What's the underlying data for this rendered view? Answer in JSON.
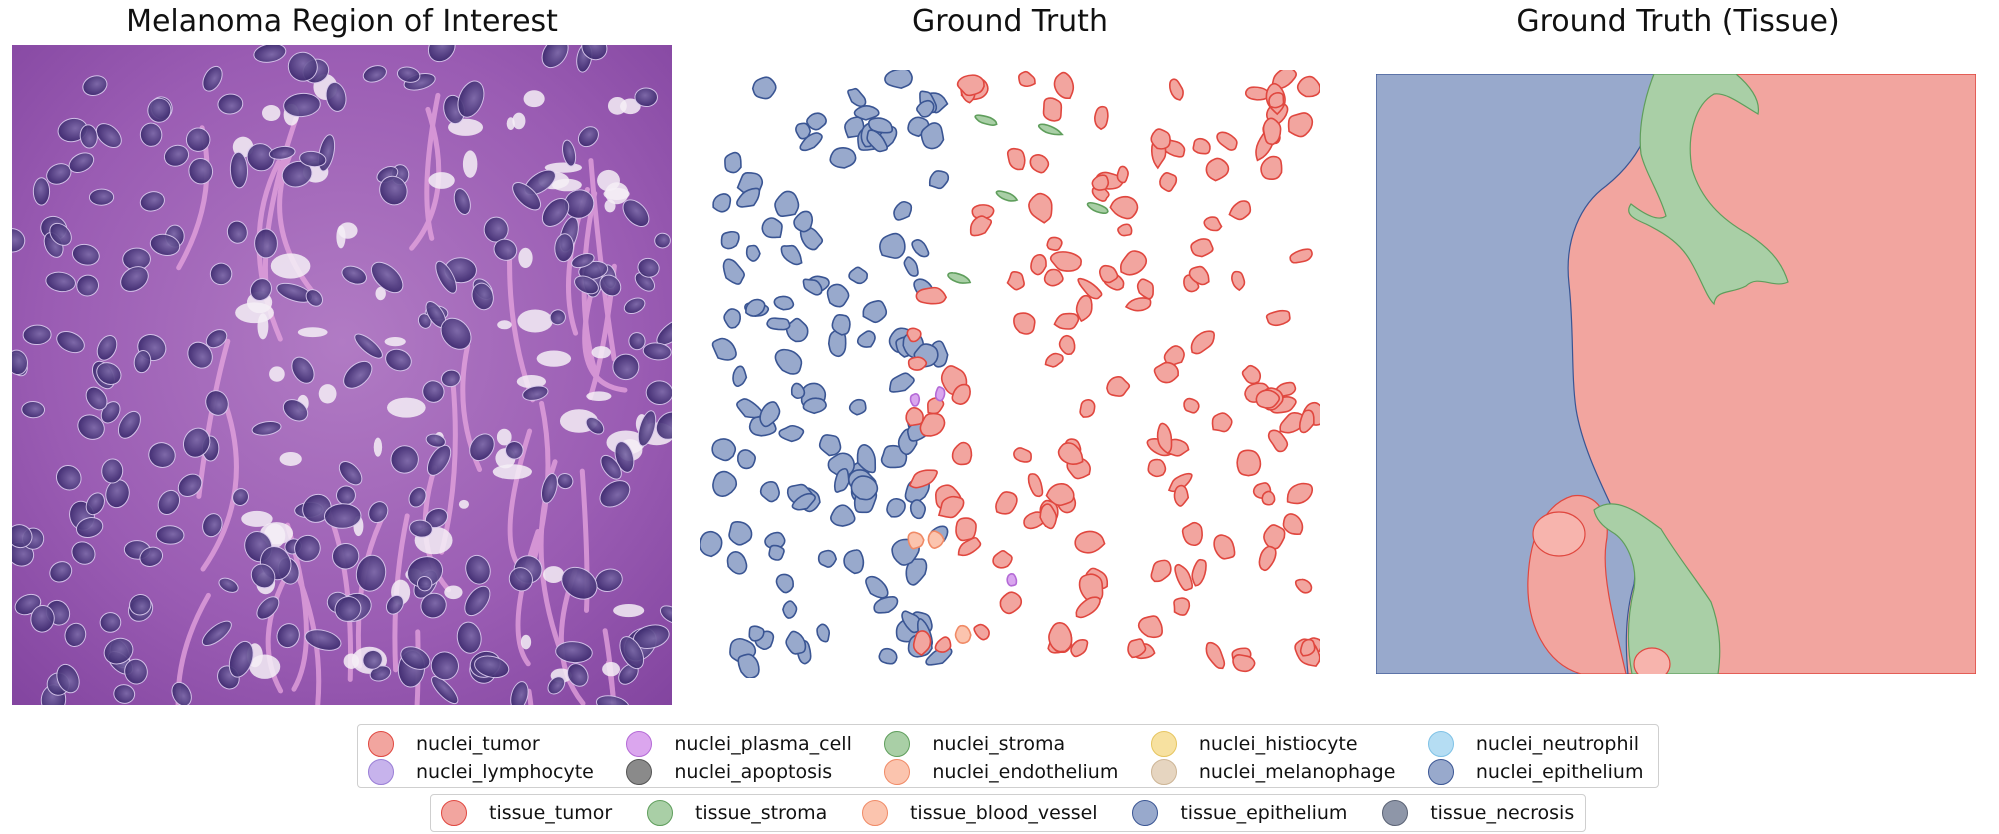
{
  "panels": {
    "roi_title": "Melanoma Region of Interest",
    "gt_title": "Ground Truth",
    "tissue_title": "Ground Truth (Tissue)"
  },
  "colors": {
    "tumor": "#f2a59f",
    "tumor_edge": "#e0473f",
    "stroma": "#a9cfa6",
    "stroma_edge": "#5f9e5c",
    "epithelium": "#98a9cc",
    "epithelium_edge": "#3a5593",
    "plasma": "#d9a6ee",
    "lymphocyte": "#c7b3ec",
    "endothelium": "#fbc4ae"
  },
  "legend_nuclei": [
    {
      "label": "nuclei_tumor",
      "color": "#f2a59f",
      "edge": "#e0473f"
    },
    {
      "label": "nuclei_lymphocyte",
      "color": "#c7b3ec",
      "edge": "#9a7fd6"
    },
    {
      "label": "nuclei_plasma_cell",
      "color": "#dba6ee",
      "edge": "#b46ad6"
    },
    {
      "label": "nuclei_apoptosis",
      "color": "#8a8a8a",
      "edge": "#555555"
    },
    {
      "label": "nuclei_stroma",
      "color": "#a9cfa6",
      "edge": "#5f9e5c"
    },
    {
      "label": "nuclei_endothelium",
      "color": "#fbc4ae",
      "edge": "#f08a66"
    },
    {
      "label": "nuclei_histiocyte",
      "color": "#f7e1a0",
      "edge": "#e6c560"
    },
    {
      "label": "nuclei_melanophage",
      "color": "#e6d5c0",
      "edge": "#cdb596"
    },
    {
      "label": "nuclei_neutrophil",
      "color": "#b5ddf3",
      "edge": "#7fc2e6"
    },
    {
      "label": "nuclei_epithelium",
      "color": "#98a9cc",
      "edge": "#3a5593"
    }
  ],
  "legend_tissue": [
    {
      "label": "tissue_tumor",
      "color": "#f2a59f",
      "edge": "#e0473f"
    },
    {
      "label": "tissue_stroma",
      "color": "#a9cfa6",
      "edge": "#5f9e5c"
    },
    {
      "label": "tissue_blood_vessel",
      "color": "#fbc4ae",
      "edge": "#f08a66"
    },
    {
      "label": "tissue_epithelium",
      "color": "#98a9cc",
      "edge": "#3a5593"
    },
    {
      "label": "tissue_necrosis",
      "color": "#8e96a8",
      "edge": "#5a6274"
    }
  ]
}
